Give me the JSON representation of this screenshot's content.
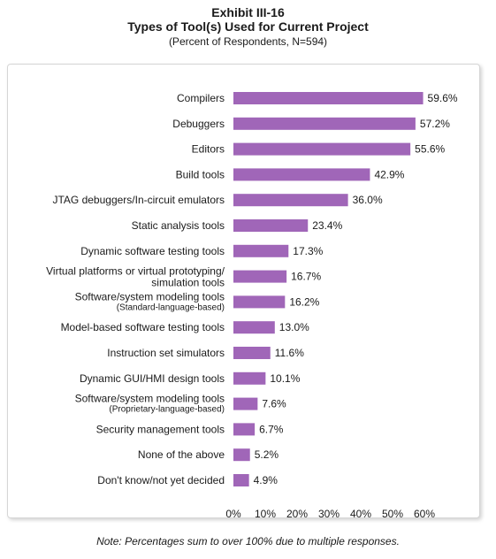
{
  "header": {
    "exhibit": "Exhibit III-16",
    "title": "Types of Tool(s) Used for Current Project",
    "subtitle": "(Percent of Respondents, N=594)"
  },
  "note": "Note: Percentages sum to over 100% due to multiple responses.",
  "chart_data": {
    "type": "bar",
    "orientation": "horizontal",
    "title": "Types of Tool(s) Used for Current Project",
    "subtitle": "(Percent of Respondents, N=594)",
    "bar_color": "#a066b8",
    "xlim": [
      0,
      60
    ],
    "x_ticks": [
      "0%",
      "10%",
      "20%",
      "30%",
      "40%",
      "50%",
      "60%"
    ],
    "grid": false,
    "legend": "none",
    "categories": [
      [
        "Compilers"
      ],
      [
        "Debuggers"
      ],
      [
        "Editors"
      ],
      [
        "Build tools"
      ],
      [
        "JTAG debuggers/In-circuit emulators"
      ],
      [
        "Static analysis tools"
      ],
      [
        "Dynamic software testing tools"
      ],
      [
        "Virtual platforms or virtual prototyping/",
        "simulation tools"
      ],
      [
        "Software/system modeling tools",
        "(Standard-language-based)"
      ],
      [
        "Model-based software testing tools"
      ],
      [
        "Instruction set simulators"
      ],
      [
        "Dynamic GUI/HMI design tools"
      ],
      [
        "Software/system modeling tools",
        "(Proprietary-language-based)"
      ],
      [
        "Security management tools"
      ],
      [
        "None of the above"
      ],
      [
        "Don't know/not yet decided"
      ]
    ],
    "values": [
      59.6,
      57.2,
      55.6,
      42.9,
      36.0,
      23.4,
      17.3,
      16.7,
      16.2,
      13.0,
      11.6,
      10.1,
      7.6,
      6.7,
      5.2,
      4.9
    ],
    "value_labels": [
      "59.6%",
      "57.2%",
      "55.6%",
      "42.9%",
      "36.0%",
      "23.4%",
      "17.3%",
      "16.7%",
      "16.2%",
      "13.0%",
      "11.6%",
      "10.1%",
      "7.6%",
      "6.7%",
      "5.2%",
      "4.9%"
    ]
  }
}
